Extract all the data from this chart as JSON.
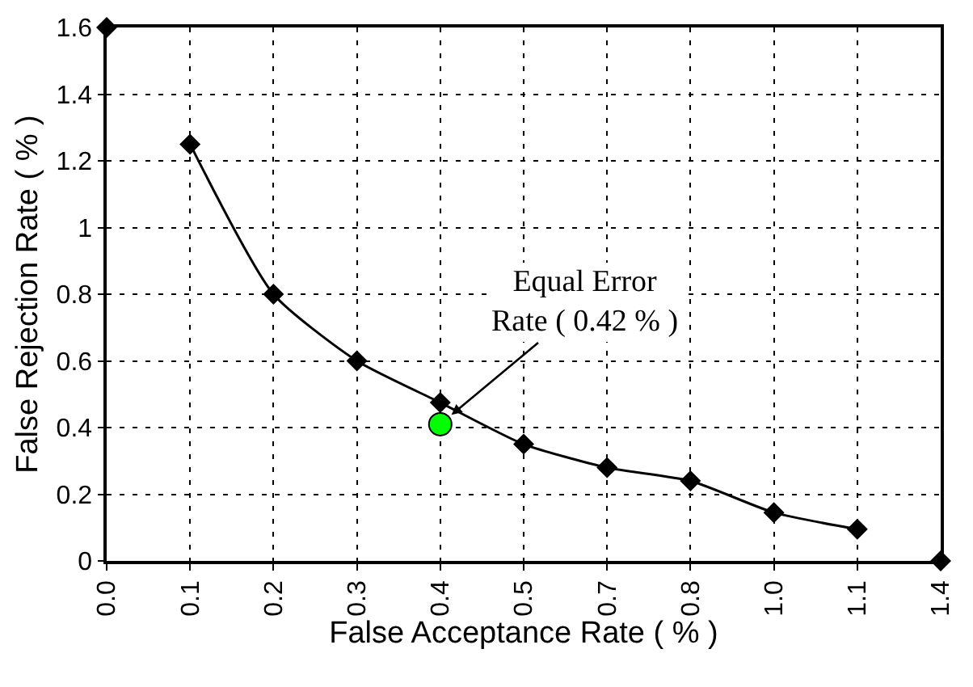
{
  "chart_data": {
    "type": "line",
    "xlabel": "False Acceptance Rate ( % )",
    "ylabel": "False Rejection Rate ( % )",
    "categories": [
      "0.0",
      "0.1",
      "0.2",
      "0.3",
      "0.4",
      "0.5",
      "0.7",
      "0.8",
      "1.0",
      "1.1",
      "1.4"
    ],
    "series": [
      {
        "type": "line",
        "color": "#000000",
        "marker": "diamond",
        "values": [
          null,
          1.25,
          0.8,
          0.6,
          0.475,
          0.35,
          0.28,
          0.24,
          0.145,
          0.095,
          null
        ]
      },
      {
        "type": "scatter",
        "color": "#000000",
        "marker": "diamond",
        "values": [
          1.6,
          null,
          null,
          null,
          null,
          null,
          null,
          null,
          null,
          null,
          0
        ]
      },
      {
        "type": "scatter",
        "color": "#00ff00",
        "marker": "circle",
        "x": [
          "0.4"
        ],
        "values": [
          0.41
        ]
      }
    ],
    "annotations": [
      {
        "text": "Equal Error\nRate ( 0.42 % )",
        "x": "0.4",
        "y": 0.41
      }
    ],
    "ylim": [
      0,
      1.6
    ],
    "yticks": [
      0,
      0.2,
      0.4,
      0.6,
      0.8,
      1,
      1.2,
      1.4,
      1.6
    ],
    "grid": true
  }
}
